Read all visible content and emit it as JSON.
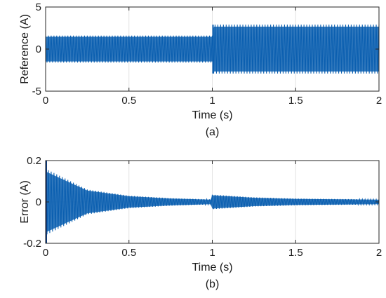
{
  "colors": {
    "signal": "#0b5fb0",
    "signal_dark": "#09387c",
    "grid": "#e3e3e3",
    "axis": "#262626"
  },
  "chart_data": [
    {
      "type": "line",
      "caption": "(a)",
      "xlabel": "Time (s)",
      "ylabel": "Reference (A)",
      "xlim": [
        0,
        2
      ],
      "ylim": [
        -5,
        5
      ],
      "xticks": [
        0,
        0.5,
        1,
        1.5,
        2
      ],
      "xtick_labels": [
        "0",
        "0.5",
        "1",
        "1.5",
        "2"
      ],
      "yticks": [
        -5,
        0,
        5
      ],
      "ytick_labels": [
        "-5",
        "0",
        "5"
      ],
      "grid": true,
      "signal": "sinusoidal, dense oscillation",
      "segments": [
        {
          "t_start": 0,
          "t_end": 1,
          "amplitude": 1.6
        },
        {
          "t_start": 1,
          "t_end": 2,
          "amplitude": 2.9
        }
      ]
    },
    {
      "type": "line",
      "caption": "(b)",
      "xlabel": "Time (s)",
      "ylabel": "Error (A)",
      "xlim": [
        0,
        2
      ],
      "ylim": [
        -0.2,
        0.2
      ],
      "xticks": [
        0,
        0.5,
        1,
        1.5,
        2
      ],
      "xtick_labels": [
        "0",
        "0.5",
        "1",
        "1.5",
        "2"
      ],
      "yticks": [
        -0.2,
        0,
        0.2
      ],
      "ytick_labels": [
        "-0.2",
        "0",
        "0.2"
      ],
      "grid": true,
      "signal": "decaying oscillation with a small disturbance at t = 1 s",
      "envelope": [
        {
          "t": 0,
          "amplitude": 0.16
        },
        {
          "t": 0.25,
          "amplitude": 0.06
        },
        {
          "t": 0.5,
          "amplitude": 0.03
        },
        {
          "t": 0.75,
          "amplitude": 0.018
        },
        {
          "t": 0.99,
          "amplitude": 0.012
        },
        {
          "t": 1.0,
          "amplitude": 0.035
        },
        {
          "t": 1.25,
          "amplitude": 0.022
        },
        {
          "t": 1.5,
          "amplitude": 0.016
        },
        {
          "t": 2.0,
          "amplitude": 0.012
        }
      ],
      "initial_spike": {
        "t": 0,
        "min": -0.2,
        "max": -0.2
      }
    }
  ]
}
